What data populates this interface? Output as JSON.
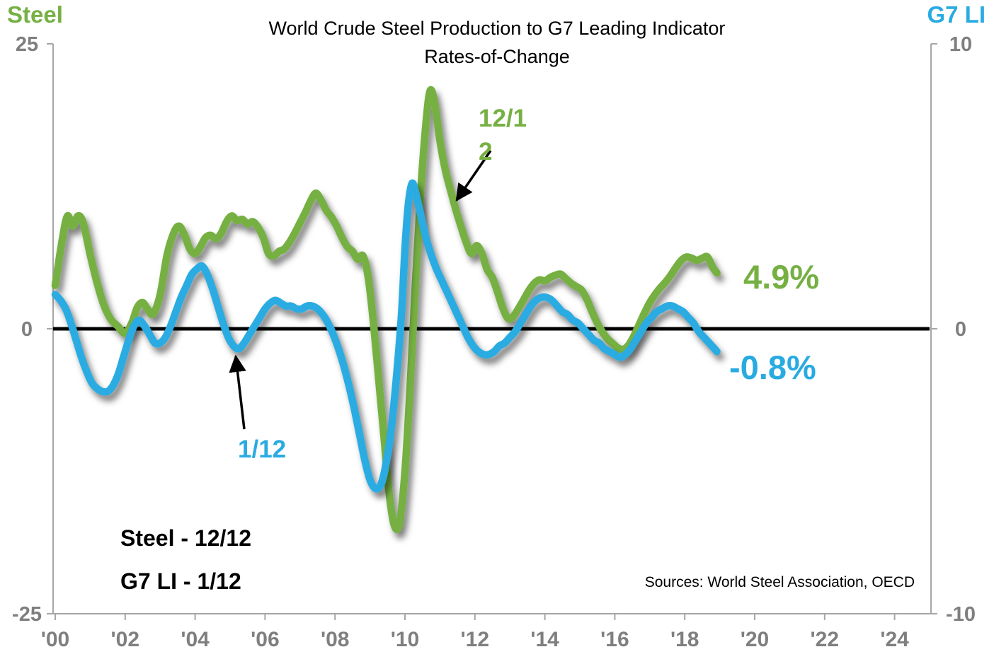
{
  "page": {
    "title_line1": "World Crude Steel Production to G7 Leading Indicator",
    "title_line2": "Rates-of-Change",
    "sources": "Sources: World Steel Association, OECD"
  },
  "axes": {
    "left_title": "Steel",
    "right_title": "G7 LI",
    "left_ticks": [
      {
        "value": 25,
        "label": "25"
      },
      {
        "value": 0,
        "label": "0"
      },
      {
        "value": -25,
        "label": "-25"
      }
    ],
    "right_ticks": [
      {
        "value": 10,
        "label": "10"
      },
      {
        "value": 0,
        "label": "0"
      },
      {
        "value": -10,
        "label": "-10"
      }
    ],
    "x_ticks": [
      {
        "year": 2000,
        "label": "'00"
      },
      {
        "year": 2002,
        "label": "'02"
      },
      {
        "year": 2004,
        "label": "'04"
      },
      {
        "year": 2006,
        "label": "'06"
      },
      {
        "year": 2008,
        "label": "'08"
      },
      {
        "year": 2010,
        "label": "'10"
      },
      {
        "year": 2012,
        "label": "'12"
      },
      {
        "year": 2014,
        "label": "'14"
      },
      {
        "year": 2016,
        "label": "'16"
      },
      {
        "year": 2018,
        "label": "'18"
      },
      {
        "year": 2020,
        "label": "'20"
      },
      {
        "year": 2022,
        "label": "'22"
      },
      {
        "year": 2024,
        "label": "'24"
      }
    ]
  },
  "legend": [
    {
      "label": "Steel - 12/12",
      "color": "#76B043"
    },
    {
      "label": "G7 LI - 1/12",
      "color": "#29ABE2"
    }
  ],
  "annotations": {
    "steel_callout_line1": "12/1",
    "steel_callout_line2": "2",
    "g7_callout": "1/12",
    "steel_latest": "4.9%",
    "g7_latest": "-0.8%"
  },
  "colors": {
    "steel": "#76B043",
    "g7": "#29ABE2",
    "zero_line": "#000000",
    "axis_line": "#A6A6A6",
    "tick_text": "#7F7F7F"
  },
  "chart_data": {
    "type": "line",
    "title": "World Crude Steel Production to G7 Leading Indicator Rates-of-Change",
    "xlabel": "",
    "x_range": [
      2000,
      2025
    ],
    "grid": false,
    "legend_position": "bottom-left-inside",
    "left_axis": {
      "title": "Steel",
      "range": [
        -25,
        25
      ],
      "tick_values": [
        25,
        0,
        -25
      ]
    },
    "right_axis": {
      "title": "G7 LI",
      "range": [
        -10,
        10
      ],
      "tick_values": [
        10,
        0,
        -10
      ]
    },
    "series": [
      {
        "name": "Steel - 12/12",
        "axis": "left",
        "color": "#76B043",
        "latest_label": "4.9%",
        "points": [
          [
            2000.0,
            3.8
          ],
          [
            2000.2,
            7.8
          ],
          [
            2000.35,
            9.9
          ],
          [
            2000.5,
            9.0
          ],
          [
            2000.65,
            9.9
          ],
          [
            2000.8,
            9.3
          ],
          [
            2001.0,
            6.5
          ],
          [
            2001.2,
            4.0
          ],
          [
            2001.4,
            2.0
          ],
          [
            2001.6,
            0.8
          ],
          [
            2001.8,
            0.2
          ],
          [
            2002.0,
            -0.4
          ],
          [
            2002.2,
            0.6
          ],
          [
            2002.35,
            1.9
          ],
          [
            2002.5,
            2.3
          ],
          [
            2002.65,
            1.7
          ],
          [
            2002.8,
            1.3
          ],
          [
            2003.0,
            3.0
          ],
          [
            2003.2,
            6.5
          ],
          [
            2003.4,
            8.5
          ],
          [
            2003.55,
            9.0
          ],
          [
            2003.7,
            8.2
          ],
          [
            2003.85,
            7.0
          ],
          [
            2004.0,
            6.6
          ],
          [
            2004.15,
            7.2
          ],
          [
            2004.3,
            8.0
          ],
          [
            2004.45,
            8.2
          ],
          [
            2004.6,
            7.9
          ],
          [
            2004.75,
            8.4
          ],
          [
            2004.9,
            9.4
          ],
          [
            2005.05,
            9.9
          ],
          [
            2005.2,
            9.5
          ],
          [
            2005.35,
            9.6
          ],
          [
            2005.5,
            9.2
          ],
          [
            2005.65,
            9.4
          ],
          [
            2005.8,
            8.9
          ],
          [
            2005.95,
            8.0
          ],
          [
            2006.1,
            6.6
          ],
          [
            2006.25,
            6.4
          ],
          [
            2006.4,
            6.8
          ],
          [
            2006.55,
            7.0
          ],
          [
            2006.7,
            7.6
          ],
          [
            2006.85,
            8.4
          ],
          [
            2007.0,
            9.3
          ],
          [
            2007.15,
            10.2
          ],
          [
            2007.3,
            11.2
          ],
          [
            2007.45,
            11.9
          ],
          [
            2007.6,
            11.3
          ],
          [
            2007.75,
            10.4
          ],
          [
            2007.9,
            9.8
          ],
          [
            2008.05,
            9.0
          ],
          [
            2008.2,
            8.0
          ],
          [
            2008.35,
            7.2
          ],
          [
            2008.5,
            6.8
          ],
          [
            2008.65,
            6.1
          ],
          [
            2008.8,
            6.4
          ],
          [
            2008.95,
            4.5
          ],
          [
            2009.1,
            0.5
          ],
          [
            2009.25,
            -4.5
          ],
          [
            2009.4,
            -9.5
          ],
          [
            2009.55,
            -14.5
          ],
          [
            2009.7,
            -17.3
          ],
          [
            2009.85,
            -17.0
          ],
          [
            2010.0,
            -12.5
          ],
          [
            2010.15,
            -5.0
          ],
          [
            2010.3,
            4.0
          ],
          [
            2010.45,
            12.0
          ],
          [
            2010.6,
            18.0
          ],
          [
            2010.72,
            20.9
          ],
          [
            2010.85,
            19.8
          ],
          [
            2011.0,
            16.5
          ],
          [
            2011.15,
            14.0
          ],
          [
            2011.3,
            12.2
          ],
          [
            2011.45,
            10.5
          ],
          [
            2011.6,
            9.0
          ],
          [
            2011.75,
            7.6
          ],
          [
            2011.9,
            6.6
          ],
          [
            2012.05,
            7.3
          ],
          [
            2012.2,
            6.6
          ],
          [
            2012.35,
            5.2
          ],
          [
            2012.5,
            4.5
          ],
          [
            2012.65,
            3.2
          ],
          [
            2012.8,
            1.8
          ],
          [
            2012.95,
            0.9
          ],
          [
            2013.1,
            1.1
          ],
          [
            2013.25,
            1.8
          ],
          [
            2013.4,
            2.6
          ],
          [
            2013.55,
            3.4
          ],
          [
            2013.7,
            4.0
          ],
          [
            2013.85,
            4.3
          ],
          [
            2014.0,
            4.2
          ],
          [
            2014.15,
            4.5
          ],
          [
            2014.3,
            4.7
          ],
          [
            2014.45,
            4.8
          ],
          [
            2014.6,
            4.4
          ],
          [
            2014.75,
            4.0
          ],
          [
            2014.9,
            3.7
          ],
          [
            2015.05,
            3.4
          ],
          [
            2015.2,
            2.6
          ],
          [
            2015.35,
            1.5
          ],
          [
            2015.5,
            0.5
          ],
          [
            2015.65,
            -0.3
          ],
          [
            2015.8,
            -0.9
          ],
          [
            2015.95,
            -1.3
          ],
          [
            2016.1,
            -1.7
          ],
          [
            2016.25,
            -1.8
          ],
          [
            2016.4,
            -1.4
          ],
          [
            2016.55,
            -0.6
          ],
          [
            2016.7,
            0.4
          ],
          [
            2016.85,
            1.4
          ],
          [
            2017.0,
            2.3
          ],
          [
            2017.15,
            3.0
          ],
          [
            2017.3,
            3.6
          ],
          [
            2017.45,
            4.1
          ],
          [
            2017.6,
            4.7
          ],
          [
            2017.75,
            5.4
          ],
          [
            2017.9,
            6.0
          ],
          [
            2018.05,
            6.3
          ],
          [
            2018.2,
            6.2
          ],
          [
            2018.35,
            6.0
          ],
          [
            2018.5,
            6.2
          ],
          [
            2018.65,
            6.3
          ],
          [
            2018.8,
            5.4
          ],
          [
            2018.92,
            4.9
          ]
        ]
      },
      {
        "name": "G7 LI - 1/12",
        "axis": "right",
        "color": "#29ABE2",
        "latest_label": "-0.8%",
        "points": [
          [
            2000.0,
            1.2
          ],
          [
            2000.15,
            1.0
          ],
          [
            2000.3,
            0.7
          ],
          [
            2000.45,
            0.2
          ],
          [
            2000.6,
            -0.4
          ],
          [
            2000.75,
            -1.0
          ],
          [
            2000.9,
            -1.5
          ],
          [
            2001.05,
            -1.9
          ],
          [
            2001.2,
            -2.1
          ],
          [
            2001.35,
            -2.2
          ],
          [
            2001.5,
            -2.2
          ],
          [
            2001.65,
            -2.0
          ],
          [
            2001.8,
            -1.6
          ],
          [
            2001.95,
            -1.0
          ],
          [
            2002.1,
            -0.4
          ],
          [
            2002.25,
            0.1
          ],
          [
            2002.4,
            0.3
          ],
          [
            2002.55,
            0.1
          ],
          [
            2002.7,
            -0.2
          ],
          [
            2002.85,
            -0.5
          ],
          [
            2003.0,
            -0.5
          ],
          [
            2003.15,
            -0.3
          ],
          [
            2003.3,
            0.1
          ],
          [
            2003.45,
            0.6
          ],
          [
            2003.6,
            1.1
          ],
          [
            2003.75,
            1.5
          ],
          [
            2003.9,
            1.9
          ],
          [
            2004.05,
            2.1
          ],
          [
            2004.2,
            2.2
          ],
          [
            2004.35,
            1.9
          ],
          [
            2004.5,
            1.4
          ],
          [
            2004.65,
            0.8
          ],
          [
            2004.8,
            0.2
          ],
          [
            2004.95,
            -0.3
          ],
          [
            2005.1,
            -0.6
          ],
          [
            2005.25,
            -0.7
          ],
          [
            2005.4,
            -0.5
          ],
          [
            2005.55,
            -0.2
          ],
          [
            2005.7,
            0.1
          ],
          [
            2005.85,
            0.4
          ],
          [
            2006.0,
            0.7
          ],
          [
            2006.15,
            0.9
          ],
          [
            2006.3,
            1.0
          ],
          [
            2006.45,
            0.9
          ],
          [
            2006.6,
            0.8
          ],
          [
            2006.75,
            0.8
          ],
          [
            2006.9,
            0.7
          ],
          [
            2007.05,
            0.7
          ],
          [
            2007.2,
            0.8
          ],
          [
            2007.35,
            0.8
          ],
          [
            2007.5,
            0.7
          ],
          [
            2007.65,
            0.5
          ],
          [
            2007.8,
            0.2
          ],
          [
            2007.95,
            -0.2
          ],
          [
            2008.1,
            -0.7
          ],
          [
            2008.25,
            -1.3
          ],
          [
            2008.4,
            -2.0
          ],
          [
            2008.55,
            -2.8
          ],
          [
            2008.7,
            -3.7
          ],
          [
            2008.85,
            -4.6
          ],
          [
            2009.0,
            -5.3
          ],
          [
            2009.15,
            -5.6
          ],
          [
            2009.3,
            -5.5
          ],
          [
            2009.45,
            -4.8
          ],
          [
            2009.6,
            -3.6
          ],
          [
            2009.75,
            -1.8
          ],
          [
            2009.9,
            0.5
          ],
          [
            2010.0,
            2.8
          ],
          [
            2010.1,
            4.4
          ],
          [
            2010.2,
            5.1
          ],
          [
            2010.3,
            4.8
          ],
          [
            2010.45,
            4.0
          ],
          [
            2010.6,
            3.2
          ],
          [
            2010.75,
            2.6
          ],
          [
            2010.9,
            2.1
          ],
          [
            2011.05,
            1.7
          ],
          [
            2011.2,
            1.3
          ],
          [
            2011.35,
            0.9
          ],
          [
            2011.5,
            0.5
          ],
          [
            2011.65,
            0.1
          ],
          [
            2011.8,
            -0.3
          ],
          [
            2011.95,
            -0.6
          ],
          [
            2012.1,
            -0.8
          ],
          [
            2012.25,
            -0.9
          ],
          [
            2012.4,
            -0.9
          ],
          [
            2012.55,
            -0.8
          ],
          [
            2012.7,
            -0.6
          ],
          [
            2012.85,
            -0.5
          ],
          [
            2013.0,
            -0.3
          ],
          [
            2013.15,
            -0.1
          ],
          [
            2013.3,
            0.2
          ],
          [
            2013.45,
            0.5
          ],
          [
            2013.6,
            0.8
          ],
          [
            2013.75,
            1.0
          ],
          [
            2013.9,
            1.1
          ],
          [
            2014.05,
            1.1
          ],
          [
            2014.2,
            1.0
          ],
          [
            2014.35,
            0.8
          ],
          [
            2014.5,
            0.6
          ],
          [
            2014.65,
            0.5
          ],
          [
            2014.8,
            0.3
          ],
          [
            2014.95,
            0.2
          ],
          [
            2015.1,
            0.0
          ],
          [
            2015.25,
            -0.2
          ],
          [
            2015.4,
            -0.4
          ],
          [
            2015.55,
            -0.5
          ],
          [
            2015.7,
            -0.7
          ],
          [
            2015.85,
            -0.8
          ],
          [
            2016.0,
            -0.9
          ],
          [
            2016.15,
            -1.0
          ],
          [
            2016.3,
            -0.9
          ],
          [
            2016.45,
            -0.7
          ],
          [
            2016.6,
            -0.4
          ],
          [
            2016.75,
            -0.1
          ],
          [
            2016.9,
            0.2
          ],
          [
            2017.05,
            0.4
          ],
          [
            2017.2,
            0.6
          ],
          [
            2017.35,
            0.7
          ],
          [
            2017.5,
            0.8
          ],
          [
            2017.65,
            0.8
          ],
          [
            2017.8,
            0.7
          ],
          [
            2017.95,
            0.6
          ],
          [
            2018.1,
            0.4
          ],
          [
            2018.25,
            0.2
          ],
          [
            2018.4,
            -0.1
          ],
          [
            2018.55,
            -0.3
          ],
          [
            2018.7,
            -0.5
          ],
          [
            2018.85,
            -0.7
          ],
          [
            2018.92,
            -0.8
          ]
        ]
      }
    ]
  }
}
